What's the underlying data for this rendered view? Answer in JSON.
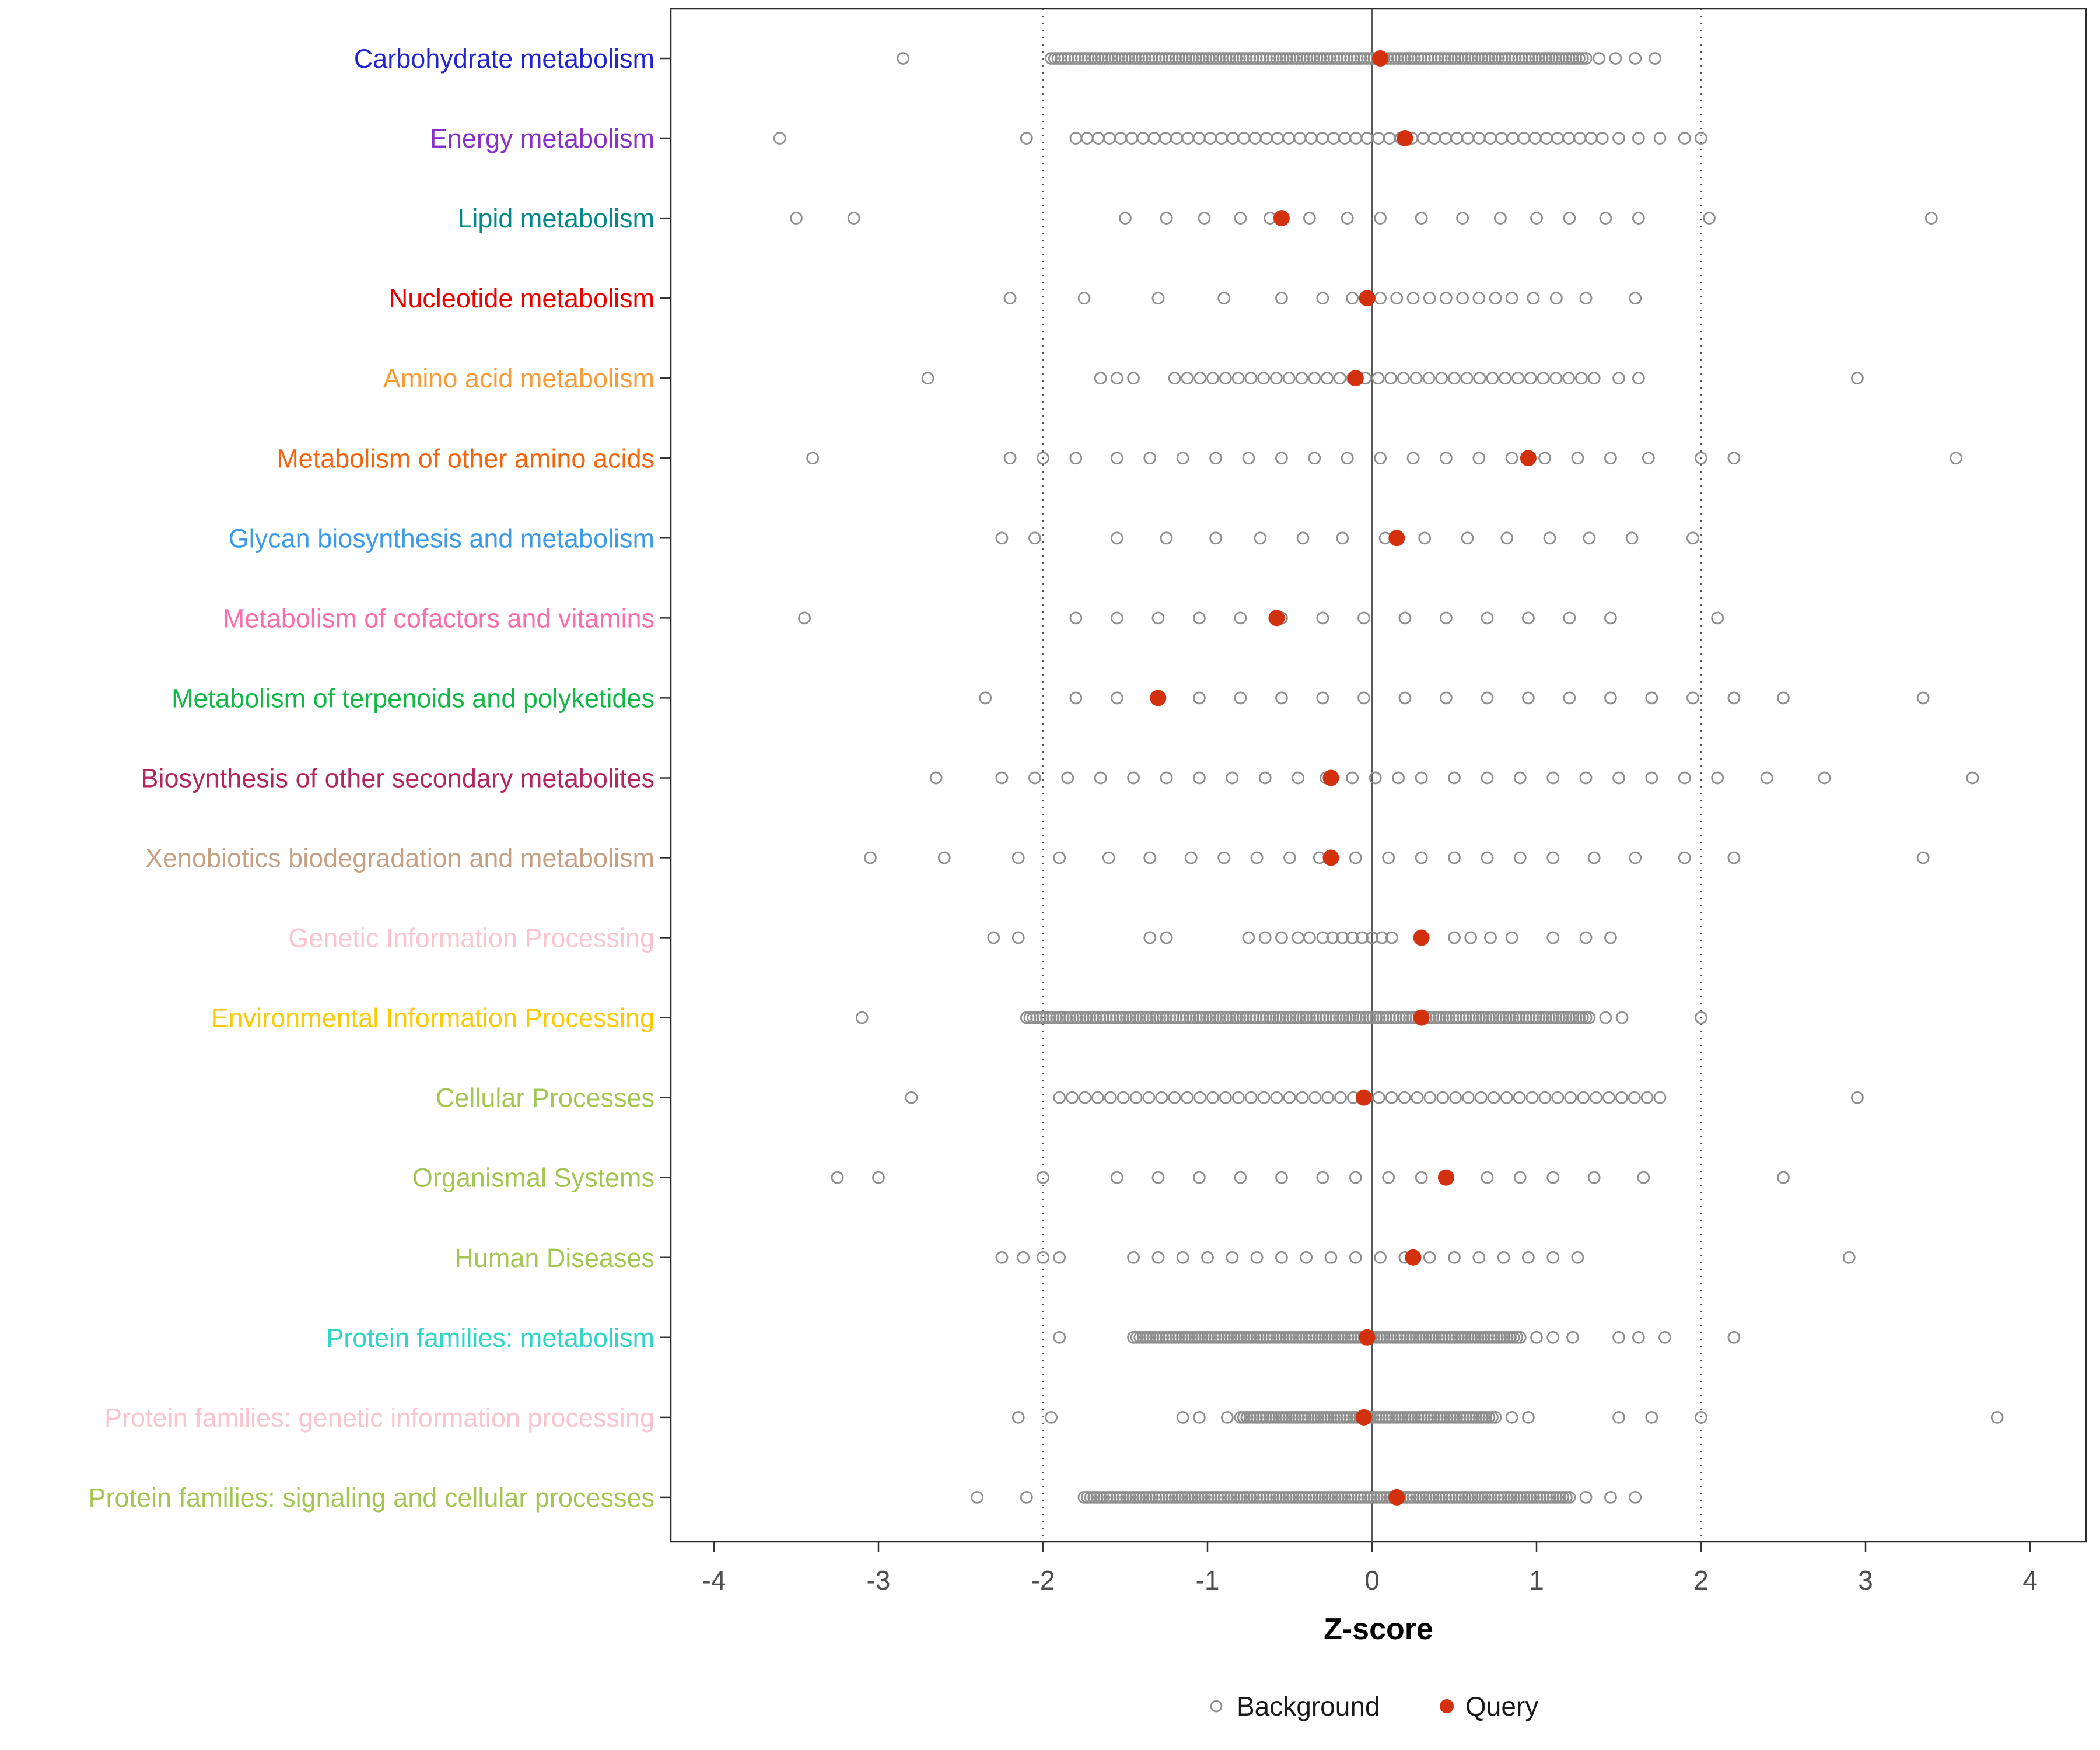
{
  "chart_data": {
    "type": "scatter",
    "subtype": "strip-dot-plot",
    "title": "",
    "xlabel": "Z-score",
    "ylabel": "",
    "xlim": [
      -4.3,
      4.35
    ],
    "x_ticks": [
      -4,
      -3,
      -2,
      -1,
      0,
      1,
      2,
      3,
      4
    ],
    "grid": "off",
    "reference_lines": {
      "solid": [
        0
      ],
      "dotted": [
        -2,
        2
      ]
    },
    "legend": {
      "background": "Background",
      "query": "Query",
      "position": "bottom-center"
    },
    "colors": {
      "background_point": "#8f8f8f",
      "query_point": "#d3310e",
      "axis_text": "#4d4d4d",
      "axis_title": "#000000",
      "panel_border": "#2b2b2b",
      "reference_line": "#595959",
      "tick_mark": "#333333"
    },
    "categories": [
      {
        "label": "Carbohydrate metabolism",
        "color": "#2323d1",
        "query": 0.05,
        "background": [
          -2.85,
          1.38,
          1.48,
          1.6,
          1.72
        ],
        "background_bands": [
          {
            "from": -1.95,
            "to": 1.3,
            "n": 160
          }
        ]
      },
      {
        "label": "Energy metabolism",
        "color": "#8930c9",
        "query": 0.2,
        "background": [
          -3.6,
          -2.1,
          1.5,
          1.62,
          1.75,
          1.9,
          2.0
        ],
        "background_bands": [
          {
            "from": -1.8,
            "to": 1.4,
            "n": 48
          }
        ]
      },
      {
        "label": "Lipid metabolism",
        "color": "#00888a",
        "query": -0.55,
        "background": [
          -3.5,
          -3.15,
          -1.5,
          -1.25,
          -1.02,
          -0.8,
          -0.62,
          -0.38,
          -0.15,
          0.05,
          0.3,
          0.55,
          0.78,
          1.0,
          1.2,
          1.42,
          1.62,
          2.05,
          3.4
        ],
        "background_bands": []
      },
      {
        "label": "Nucleotide metabolism",
        "color": "#ee0000",
        "query": -0.03,
        "background": [
          -2.2,
          -1.75,
          -1.3,
          -0.9,
          -0.55,
          -0.3,
          -0.12,
          0.05,
          0.15,
          0.25,
          0.35,
          0.45,
          0.55,
          0.65,
          0.75,
          0.85,
          0.98,
          1.12,
          1.3,
          1.6
        ],
        "background_bands": []
      },
      {
        "label": "Amino acid metabolism",
        "color": "#fb9a37",
        "query": -0.1,
        "background": [
          -2.7,
          -1.65,
          -1.55,
          -1.45,
          1.5,
          1.62,
          2.95
        ],
        "background_bands": [
          {
            "from": -1.2,
            "to": 1.35,
            "n": 34
          }
        ]
      },
      {
        "label": "Metabolism of other amino acids",
        "color": "#f3640d",
        "query": 0.95,
        "background": [
          -3.4,
          -2.2,
          -2.0,
          -1.8,
          -1.55,
          -1.35,
          -1.15,
          -0.95,
          -0.75,
          -0.55,
          -0.35,
          -0.15,
          0.05,
          0.25,
          0.45,
          0.65,
          0.85,
          1.05,
          1.25,
          1.45,
          1.68,
          2.0,
          2.2,
          3.55
        ],
        "background_bands": []
      },
      {
        "label": "Glycan biosynthesis and metabolism",
        "color": "#3e9be9",
        "query": 0.15,
        "background": [
          -2.25,
          -2.05,
          -1.55,
          -1.25,
          -0.95,
          -0.68,
          -0.42,
          -0.18,
          0.08,
          0.32,
          0.58,
          0.82,
          1.08,
          1.32,
          1.58,
          1.95
        ],
        "background_bands": []
      },
      {
        "label": "Metabolism of cofactors and vitamins",
        "color": "#fc6ea9",
        "query": -0.58,
        "background": [
          -3.45,
          -1.8,
          -1.55,
          -1.3,
          -1.05,
          -0.8,
          -0.55,
          -0.3,
          -0.05,
          0.2,
          0.45,
          0.7,
          0.95,
          1.2,
          1.45,
          2.1
        ],
        "background_bands": []
      },
      {
        "label": "Metabolism of terpenoids and polyketides",
        "color": "#12b845",
        "query": -1.3,
        "background": [
          -2.35,
          -1.8,
          -1.55,
          -1.05,
          -0.8,
          -0.55,
          -0.3,
          -0.05,
          0.2,
          0.45,
          0.7,
          0.95,
          1.2,
          1.45,
          1.7,
          1.95,
          2.2,
          2.5,
          3.35
        ],
        "background_bands": []
      },
      {
        "label": "Biosynthesis of other secondary metabolites",
        "color": "#b3275e",
        "query": -0.25,
        "background": [
          -2.65,
          -2.25,
          -2.05,
          -1.85,
          -1.65,
          -1.45,
          -1.25,
          -1.05,
          -0.85,
          -0.65,
          -0.45,
          -0.28,
          -0.12,
          0.02,
          0.16,
          0.3,
          0.5,
          0.7,
          0.9,
          1.1,
          1.3,
          1.5,
          1.7,
          1.9,
          2.1,
          2.4,
          2.75,
          3.65
        ],
        "background_bands": []
      },
      {
        "label": "Xenobiotics biodegradation and metabolism",
        "color": "#c7a083",
        "query": -0.25,
        "background": [
          -3.05,
          -2.6,
          -2.15,
          -1.9,
          -1.6,
          -1.35,
          -1.1,
          -0.9,
          -0.7,
          -0.5,
          -0.32,
          -0.1,
          0.1,
          0.3,
          0.5,
          0.7,
          0.9,
          1.1,
          1.35,
          1.6,
          1.9,
          2.2,
          3.35
        ],
        "background_bands": []
      },
      {
        "label": "Genetic Information Processing",
        "color": "#fac4ce",
        "query": 0.3,
        "background": [
          -2.3,
          -2.15,
          -1.35,
          -1.25,
          -0.75,
          -0.65,
          -0.55,
          -0.45,
          -0.38,
          -0.3,
          -0.24,
          -0.18,
          -0.12,
          -0.06,
          0.0,
          0.06,
          0.12,
          0.5,
          0.6,
          0.72,
          0.85,
          1.1,
          1.3,
          1.45
        ],
        "background_bands": []
      },
      {
        "label": "Environmental Information Processing",
        "color": "#fcca00",
        "query": 0.3,
        "background": [
          -3.1,
          1.42,
          1.52,
          2.0
        ],
        "background_bands": [
          {
            "from": -2.1,
            "to": 1.32,
            "n": 170
          }
        ]
      },
      {
        "label": "Cellular Processes",
        "color": "#a3c653",
        "query": -0.05,
        "background": [
          -2.8,
          2.95
        ],
        "background_bands": [
          {
            "from": -1.9,
            "to": 1.75,
            "n": 48
          }
        ]
      },
      {
        "label": "Organismal Systems",
        "color": "#a3c653",
        "query": 0.45,
        "background": [
          -3.25,
          -3.0,
          -2.0,
          -1.55,
          -1.3,
          -1.05,
          -0.8,
          -0.55,
          -0.3,
          -0.1,
          0.1,
          0.3,
          0.7,
          0.9,
          1.1,
          1.35,
          1.65,
          2.5
        ],
        "background_bands": []
      },
      {
        "label": "Human Diseases",
        "color": "#a3c653",
        "query": 0.25,
        "background": [
          -2.25,
          -2.12,
          -2.0,
          -1.9,
          -1.45,
          -1.3,
          -1.15,
          -1.0,
          -0.85,
          -0.7,
          -0.55,
          -0.4,
          -0.25,
          -0.1,
          0.05,
          0.2,
          0.35,
          0.5,
          0.65,
          0.8,
          0.95,
          1.1,
          1.25,
          2.9
        ],
        "background_bands": []
      },
      {
        "label": "Protein families: metabolism",
        "color": "#30d5c8",
        "query": -0.03,
        "background": [
          -1.9,
          1.0,
          1.1,
          1.22,
          1.5,
          1.62,
          1.78,
          2.2
        ],
        "background_bands": [
          {
            "from": -1.45,
            "to": 0.9,
            "n": 120
          }
        ]
      },
      {
        "label": "Protein families: genetic information processing",
        "color": "#fac4ce",
        "query": -0.05,
        "background": [
          -2.15,
          -1.95,
          -1.15,
          -1.05,
          -0.88,
          0.85,
          0.95,
          1.5,
          1.7,
          2.0,
          3.8
        ],
        "background_bands": [
          {
            "from": -0.8,
            "to": 0.75,
            "n": 80
          }
        ]
      },
      {
        "label": "Protein families: signaling and cellular processes",
        "color": "#a3c653",
        "query": 0.15,
        "background": [
          -2.4,
          -2.1,
          1.3,
          1.45,
          1.6
        ],
        "background_bands": [
          {
            "from": -1.75,
            "to": 1.2,
            "n": 150
          }
        ]
      }
    ]
  }
}
